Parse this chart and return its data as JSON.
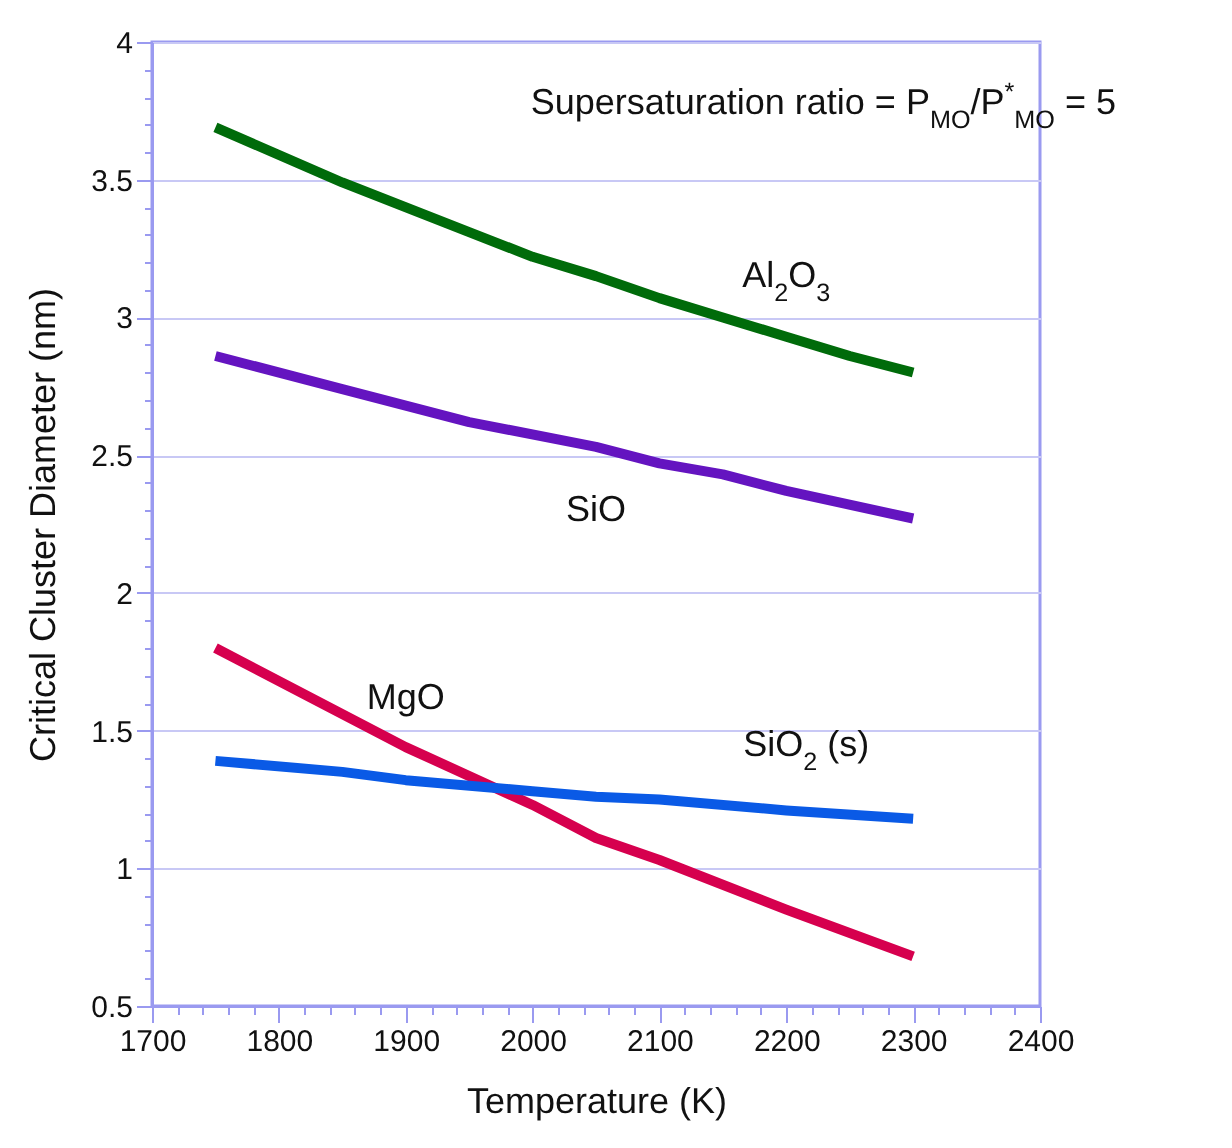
{
  "chart_data": {
    "type": "line",
    "xlabel": "Temperature (K)",
    "ylabel": "Critical Cluster Diameter (nm)",
    "annotations": [
      "Supersaturation ratio = P$_{MO}$/P$^{*}$$_{MO}$ = 5"
    ],
    "series": [
      {
        "name": "Al$_{2}$O$_{3}$",
        "color": "#006b0a",
        "x": [
          1750,
          1850,
          1950,
          2000,
          2050,
          2100,
          2150,
          2200,
          2250,
          2300
        ],
        "values": [
          3.69,
          3.49,
          3.31,
          3.22,
          3.15,
          3.07,
          3.0,
          2.93,
          2.86,
          2.8
        ]
      },
      {
        "name": "SiO",
        "color": "#6414c0",
        "x": [
          1750,
          1850,
          1950,
          2050,
          2100,
          2150,
          2200,
          2300
        ],
        "values": [
          2.86,
          2.74,
          2.62,
          2.53,
          2.47,
          2.43,
          2.37,
          2.27
        ]
      },
      {
        "name": "MgO",
        "color": "#d6004e",
        "x": [
          1750,
          1900,
          2000,
          2050,
          2100,
          2200,
          2300
        ],
        "values": [
          1.8,
          1.44,
          1.23,
          1.11,
          1.03,
          0.85,
          0.68
        ]
      },
      {
        "name": "SiO$_{2}$ (s)",
        "color": "#0a5ae6",
        "x": [
          1750,
          1850,
          1900,
          2000,
          2050,
          2100,
          2200,
          2300
        ],
        "values": [
          1.39,
          1.35,
          1.32,
          1.28,
          1.26,
          1.25,
          1.21,
          1.18
        ]
      }
    ],
    "xlim": [
      1700,
      2400
    ],
    "xticks": [
      1700,
      {
        "value": 1720,
        "label": null
      },
      {
        "value": 1740,
        "label": null
      },
      {
        "value": 1760,
        "label": null
      },
      {
        "value": 1780,
        "label": null
      },
      1800,
      {
        "value": 1820,
        "label": null
      },
      {
        "value": 1840,
        "label": null
      },
      {
        "value": 1860,
        "label": null
      },
      {
        "value": 1880,
        "label": null
      },
      1900,
      {
        "value": 1920,
        "label": null
      },
      {
        "value": 1940,
        "label": null
      },
      {
        "value": 1960,
        "label": null
      },
      {
        "value": 1980,
        "label": null
      },
      2000,
      {
        "value": 2020,
        "label": null
      },
      {
        "value": 2040,
        "label": null
      },
      {
        "value": 2060,
        "label": null
      },
      {
        "value": 2080,
        "label": null
      },
      2100,
      {
        "value": 2120,
        "label": null
      },
      {
        "value": 2140,
        "label": null
      },
      {
        "value": 2160,
        "label": null
      },
      {
        "value": 2180,
        "label": null
      },
      2200,
      {
        "value": 2220,
        "label": null
      },
      {
        "value": 2240,
        "label": null
      },
      {
        "value": 2260,
        "label": null
      },
      {
        "value": 2280,
        "label": null
      },
      2300,
      {
        "value": 2320,
        "label": null
      },
      {
        "value": 2340,
        "label": null
      },
      {
        "value": 2360,
        "label": null
      },
      {
        "value": 2380,
        "label": null
      },
      2400
    ],
    "ylim": [
      0.5,
      4
    ],
    "yticks": [
      0.5,
      {
        "value": 0.6,
        "label": null
      },
      {
        "value": 0.7,
        "label": null
      },
      {
        "value": 0.8,
        "label": null
      },
      {
        "value": 0.9,
        "label": null
      },
      1,
      {
        "value": 1.1,
        "label": null
      },
      {
        "value": 1.2,
        "label": null
      },
      {
        "value": 1.3,
        "label": null
      },
      {
        "value": 1.4,
        "label": null
      },
      1.5,
      {
        "value": 1.6,
        "label": null
      },
      {
        "value": 1.7,
        "label": null
      },
      {
        "value": 1.8,
        "label": null
      },
      {
        "value": 1.9,
        "label": null
      },
      2,
      {
        "value": 2.1,
        "label": null
      },
      {
        "value": 2.2,
        "label": null
      },
      {
        "value": 2.3,
        "label": null
      },
      {
        "value": 2.4,
        "label": null
      },
      2.5,
      {
        "value": 2.6,
        "label": null
      },
      {
        "value": 2.7,
        "label": null
      },
      {
        "value": 2.8,
        "label": null
      },
      {
        "value": 2.9,
        "label": null
      },
      3,
      {
        "value": 3.1,
        "label": null
      },
      {
        "value": 3.2,
        "label": null
      },
      {
        "value": 3.3,
        "label": null
      },
      {
        "value": 3.4,
        "label": null
      },
      3.5,
      {
        "value": 3.6,
        "label": null
      },
      {
        "value": 3.7,
        "label": null
      },
      {
        "value": 3.8,
        "label": null
      },
      {
        "value": 3.9,
        "label": null
      },
      4
    ],
    "grid": "y",
    "legend": false,
    "marker": "none",
    "line_style": "solid"
  }
}
